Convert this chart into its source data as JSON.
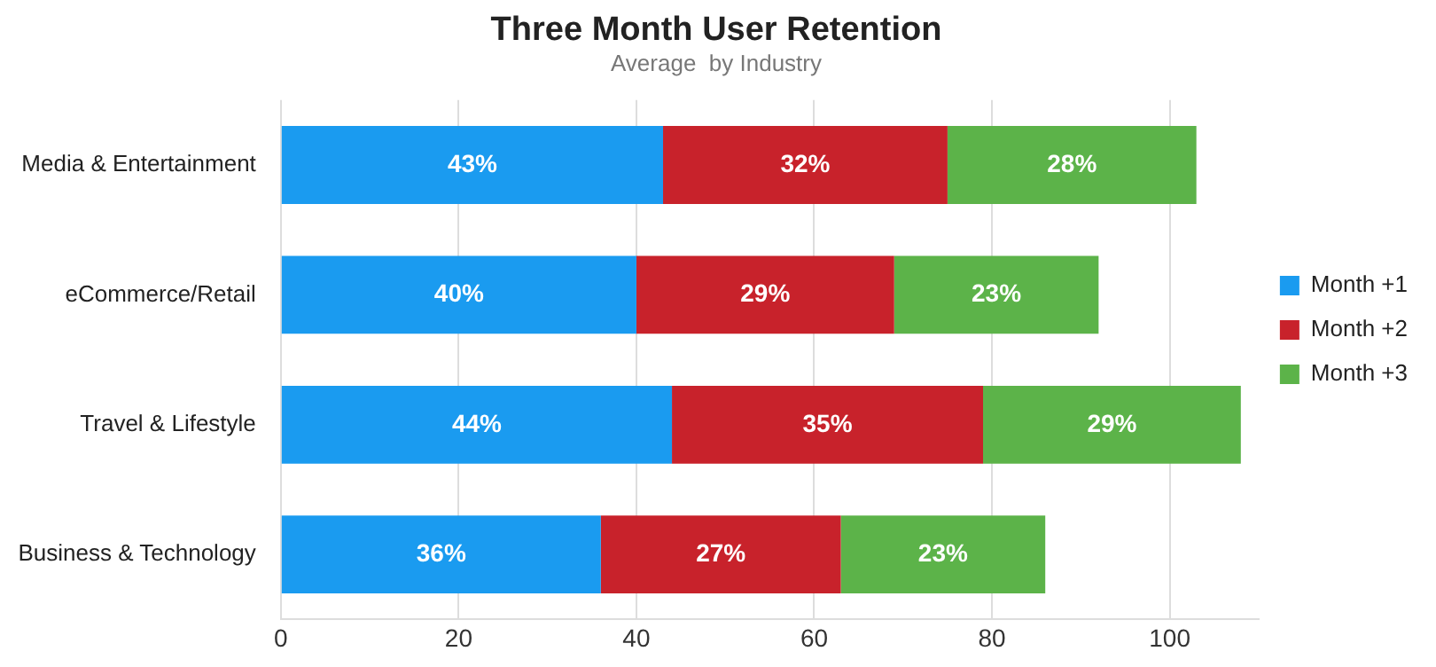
{
  "chart_data": {
    "type": "bar",
    "title": "Three Month User Retention",
    "subtitle": "Average  by Industry",
    "orientation": "horizontal",
    "stacked": true,
    "categories": [
      "Media & Entertainment",
      "eCommerce/Retail",
      "Travel & Lifestyle",
      "Business & Technology"
    ],
    "series": [
      {
        "name": "Month +1",
        "color": "#1a9bf0",
        "values": [
          43,
          40,
          44,
          36
        ]
      },
      {
        "name": "Month +2",
        "color": "#c8222b",
        "values": [
          32,
          29,
          35,
          27
        ]
      },
      {
        "name": "Month +3",
        "color": "#5cb349",
        "values": [
          28,
          23,
          29,
          23
        ]
      }
    ],
    "value_labels": [
      [
        "43%",
        "40%",
        "44%",
        "36%"
      ],
      [
        "32%",
        "29%",
        "35%",
        "27%"
      ],
      [
        "28%",
        "23%",
        "29%",
        "23%"
      ]
    ],
    "xlim": [
      0,
      110
    ],
    "xticks": [
      0,
      20,
      40,
      60,
      80,
      100
    ],
    "grid": "x",
    "legend": "right"
  }
}
